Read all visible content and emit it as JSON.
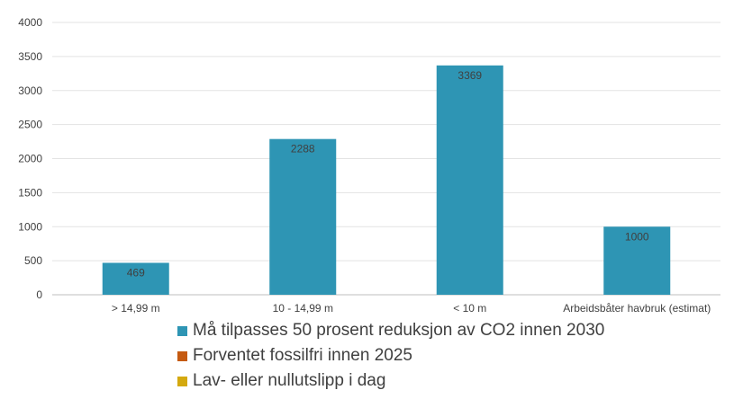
{
  "chart_data": {
    "type": "bar",
    "categories": [
      "> 14,99 m",
      "10 - 14,99 m",
      "< 10 m",
      "Arbeidsbåter havbruk (estimat)"
    ],
    "series": [
      {
        "name": "Må tilpasses 50 prosent reduksjon av CO2 innen 2030",
        "values": [
          469,
          2288,
          3369,
          1000
        ],
        "color": "#2E95B4"
      },
      {
        "name": "Forventet fossilfri innen 2025",
        "values": [
          0,
          0,
          0,
          0
        ],
        "color": "#C55A11"
      },
      {
        "name": "Lav- eller nullutslipp i dag",
        "values": [
          0,
          0,
          0,
          0
        ],
        "color": "#D4A90F"
      }
    ],
    "data_labels": [
      "469",
      "2288",
      "3369",
      "1000"
    ],
    "y_ticks": [
      "0",
      "500",
      "1000",
      "1500",
      "2000",
      "2500",
      "3000",
      "3500",
      "4000"
    ],
    "ylim": [
      0,
      4000
    ],
    "grid": true,
    "legend_position": "bottom"
  }
}
